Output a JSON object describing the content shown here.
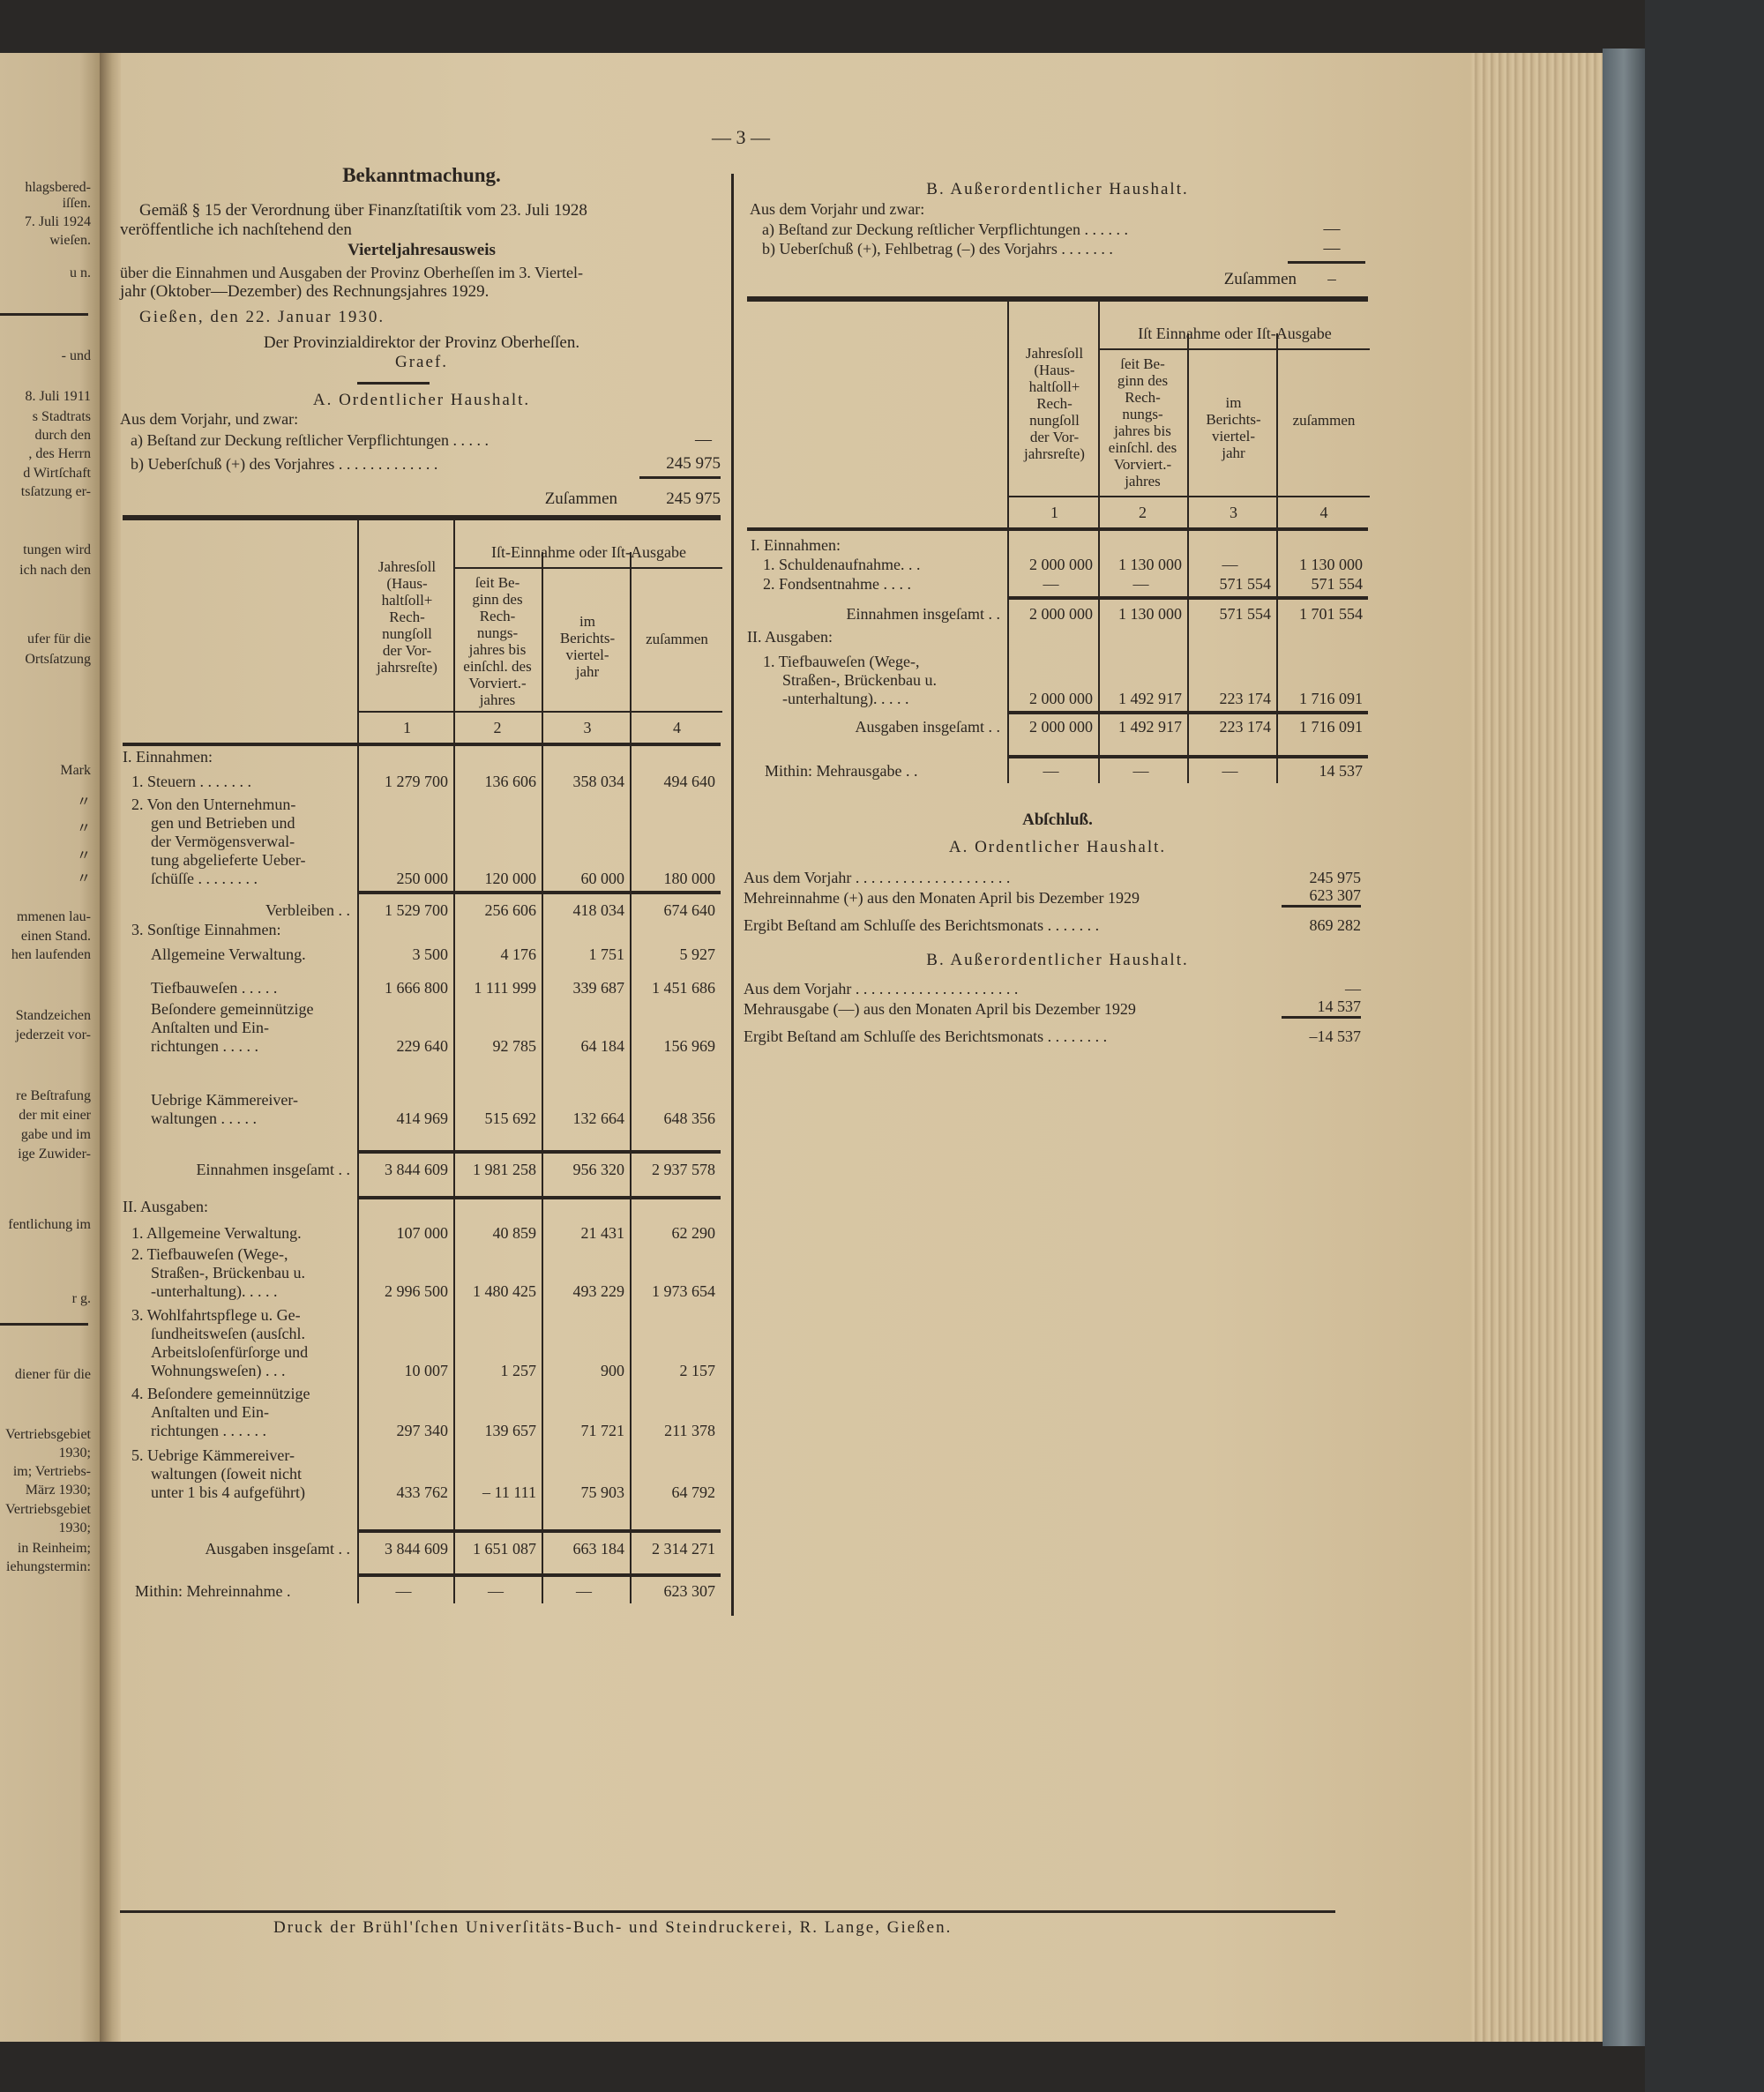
{
  "page_number": "— 3 —",
  "left_page_fragments": [
    "hlagsbered-",
    "iſſen.",
    "7. Juli 1924",
    "wieſen.",
    "u n.",
    "- und",
    "8. Juli 1911",
    "s Stadtrats",
    "durch den",
    ", des Herrn",
    "d Wirtſchaft",
    "tsſatzung er-",
    "tungen wird",
    "ich nach den",
    "ufer für die",
    "Ortsſatzung",
    "Mark",
    "〃",
    "〃",
    "〃",
    "〃",
    "mmenen lau-",
    "einen Stand.",
    "hen laufenden",
    "Standzeichen",
    "jederzeit vor-",
    "re Beſtrafung",
    "der mit einer",
    "gabe und im",
    "ige Zuwider-",
    "fentlichung im",
    "r g.",
    "diener für die",
    "Vertriebsgebiet",
    "1930;",
    "im; Vertriebs-",
    "März 1930;",
    "Vertriebsgebiet",
    "1930;",
    "in Reinheim;",
    "iehungstermin:"
  ],
  "notice": {
    "title": "Bekanntmachung.",
    "intro_1": "Gemäß § 15 der Verordnung über Finanzſtatiſtik vom 23. Juli 1928",
    "intro_2": "veröffentliche ich nachſtehend den",
    "report_title": "Vierteljahresausweis",
    "desc_1": "über die Einnahmen und Ausgaben der Provinz Oberheſſen im 3. Viertel-",
    "desc_2": "jahr (Oktober—Dezember) des Rechnungsjahres 1929.",
    "place_date": "Gießen, den 22. Januar 1930.",
    "authority": "Der Provinzialdirektor der Provinz Oberheſſen.",
    "signature": "Graef."
  },
  "section_a": {
    "heading": "A. Ordentlicher Haushalt.",
    "from_prev": "Aus dem Vorjahr, und zwar:",
    "a_label": "a) Beſtand zur Deckung reſtlicher Verpflichtungen . . . . .",
    "a_value": "—",
    "b_label": "b) Ueberſchuß (+) des Vorjahres . . . . . . . . . . . . .",
    "b_value": "245 975",
    "total_label": "Zuſammen",
    "total_value": "245 975"
  },
  "section_b": {
    "heading": "B. Außerordentlicher Haushalt.",
    "from_prev": "Aus dem Vorjahr und zwar:",
    "a_label": "a) Beſtand zur Deckung reſtlicher Verpflichtungen . . . . . .",
    "a_value": "—",
    "b_label": "b) Ueberſchuß (+), Fehlbetrag (–) des Vorjahrs . . . . . . .",
    "b_value": "—",
    "total_label": "Zuſammen",
    "total_value": "–"
  },
  "table_header": {
    "col1": "Jahresſoll\n(Haus-\nhaltſoll+\nRech-\nnungſoll\nder Vor-\njahrsreſte)",
    "group_a": "Iſt-Einnahme oder Iſt-Ausgabe",
    "group_b": "Iſt Einnahme oder Iſt-Ausgabe",
    "col2": "ſeit Be-\nginn des\nRech-\nnungs-\njahres bis\neinſchl. des\nVorviert.-\njahres",
    "col3": "im\nBerichts-\nviertel-\njahr",
    "col4": "zuſammen",
    "nums": [
      "1",
      "2",
      "3",
      "4"
    ]
  },
  "table_a": {
    "rows": [
      {
        "label": "I. Einnahmen:",
        "values": []
      },
      {
        "label": "1. Steuern . . . . . . .",
        "values": [
          "1 279 700",
          "136 606",
          "358 034",
          "494 640"
        ]
      },
      {
        "label": "2. Von den Unternehmun-\ngen und Betrieben und\nder Vermögensverwal-\ntung abgelieferte Ueber-\nſchüſſe . . . . . . . .",
        "values": [
          "250 000",
          "120 000",
          "60 000",
          "180 000"
        ]
      },
      {
        "label": "Verbleiben . .",
        "values": [
          "1 529 700",
          "256 606",
          "418 034",
          "674 640"
        ]
      },
      {
        "label": "3. Sonſtige Einnahmen:",
        "values": []
      },
      {
        "label": "Allgemeine Verwaltung.",
        "values": [
          "3 500",
          "4 176",
          "1 751",
          "5 927"
        ]
      },
      {
        "label": "Tiefbauweſen . . . . .",
        "values": [
          "1 666 800",
          "1 111 999",
          "339 687",
          "1 451 686"
        ]
      },
      {
        "label": "Beſondere gemeinnützige\n  Anſtalten und Ein-\n  richtungen . . . . .",
        "values": [
          "229 640",
          "92 785",
          "64 184",
          "156 969"
        ]
      },
      {
        "label": "Uebrige Kämmereiver-\n  waltungen . . . . .",
        "values": [
          "414 969",
          "515 692",
          "132 664",
          "648 356"
        ]
      },
      {
        "label": "Einnahmen insgeſamt . .",
        "values": [
          "3 844 609",
          "1 981 258",
          "956 320",
          "2 937 578"
        ]
      },
      {
        "label": "II. Ausgaben:",
        "values": []
      },
      {
        "label": "1. Allgemeine Verwaltung.",
        "values": [
          "107 000",
          "40 859",
          "21 431",
          "62 290"
        ]
      },
      {
        "label": "2. Tiefbauweſen (Wege-,\nStraßen-, Brückenbau u.\n-unterhaltung). . . . .",
        "values": [
          "2 996 500",
          "1 480 425",
          "493 229",
          "1 973 654"
        ]
      },
      {
        "label": "3. Wohlfahrtspflege u. Ge-\nſundheitsweſen (ausſchl.\nArbeitsloſenfürſorge und\nWohnungsweſen) . . .",
        "values": [
          "10 007",
          "1 257",
          "900",
          "2 157"
        ]
      },
      {
        "label": "4. Beſondere gemeinnützige\nAnſtalten und Ein-\nrichtungen . . . . . .",
        "values": [
          "297 340",
          "139 657",
          "71 721",
          "211 378"
        ]
      },
      {
        "label": "5. Uebrige Kämmereiver-\nwaltungen (ſoweit nicht\nunter 1 bis 4 aufgeführt)",
        "values": [
          "433 762",
          "– 11 111",
          "75 903",
          "64 792"
        ]
      },
      {
        "label": "Ausgaben insgeſamt . .",
        "values": [
          "3 844 609",
          "1 651 087",
          "663 184",
          "2 314 271"
        ]
      },
      {
        "label": "Mithin: Mehreinnahme .",
        "values": [
          "—",
          "—",
          "—",
          "623 307"
        ]
      }
    ]
  },
  "table_b": {
    "rows": [
      {
        "label": "I. Einnahmen:",
        "values": []
      },
      {
        "label": "1. Schuldenaufnahme. . .",
        "values": [
          "2 000 000",
          "1 130 000",
          "—",
          "1 130 000"
        ]
      },
      {
        "label": "2. Fondsentnahme . . . .",
        "values": [
          "—",
          "—",
          "571 554",
          "571 554"
        ]
      },
      {
        "label": "Einnahmen insgeſamt . .",
        "values": [
          "2 000 000",
          "1 130 000",
          "571 554",
          "1 701 554"
        ]
      },
      {
        "label": "II. Ausgaben:",
        "values": []
      },
      {
        "label": "1. Tiefbauweſen (Wege-,\nStraßen-, Brückenbau u.\n-unterhaltung). . . . .",
        "values": [
          "2 000 000",
          "1 492 917",
          "223 174",
          "1 716 091"
        ]
      },
      {
        "label": "Ausgaben insgeſamt . .",
        "values": [
          "2 000 000",
          "1 492 917",
          "223 174",
          "1 716 091"
        ]
      },
      {
        "label": "Mithin: Mehrausgabe . .",
        "values": [
          "—",
          "—",
          "—",
          "14 537"
        ]
      }
    ]
  },
  "closing": {
    "title": "Abſchluß.",
    "a_heading": "A. Ordentlicher Haushalt.",
    "a_lines": [
      {
        "label": "Aus dem Vorjahr . . . . . . . . . . . . . . . . . . . .",
        "value": "245 975"
      },
      {
        "label": "Mehreinnahme (+) aus den Monaten April bis Dezember 1929",
        "value": "623 307"
      },
      {
        "label": "Ergibt Beſtand am Schluſſe des Berichtsmonats . . . . . . .",
        "value": "869 282"
      }
    ],
    "b_heading": "B. Außerordentlicher Haushalt.",
    "b_lines": [
      {
        "label": "Aus dem Vorjahr . . . . . . . . . . . . . . . . . . . . .",
        "value": "—"
      },
      {
        "label": "Mehrausgabe (—) aus den Monaten April bis Dezember 1929",
        "value": "14 537"
      },
      {
        "label": "Ergibt Beſtand am Schluſſe des Berichtsmonats . . . . . . . .",
        "value": "–14 537"
      }
    ]
  },
  "footer": "Druck der Brühl'ſchen Univerſitäts-Buch- und Steindruckerei, R. Lange, Gießen."
}
